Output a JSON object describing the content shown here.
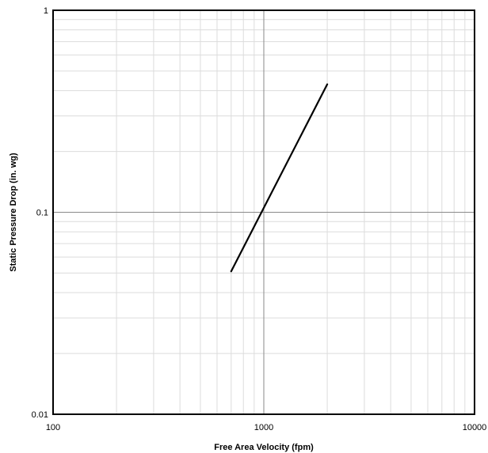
{
  "chart_data": {
    "type": "line",
    "title": "",
    "xlabel": "Free Area Velocity (fpm)",
    "ylabel": "Static Pressure Drop (in. wg)",
    "xscale": "log",
    "yscale": "log",
    "xlim": [
      100,
      10000
    ],
    "ylim": [
      0.01,
      1
    ],
    "x_ticks": [
      "100",
      "1000",
      "10000"
    ],
    "y_ticks": [
      "0.01",
      "0.1",
      "1"
    ],
    "grid": true,
    "legend": "none",
    "series": [
      {
        "x": [
          700,
          2000
        ],
        "y": [
          0.051,
          0.43
        ],
        "color": "#000000"
      }
    ]
  }
}
